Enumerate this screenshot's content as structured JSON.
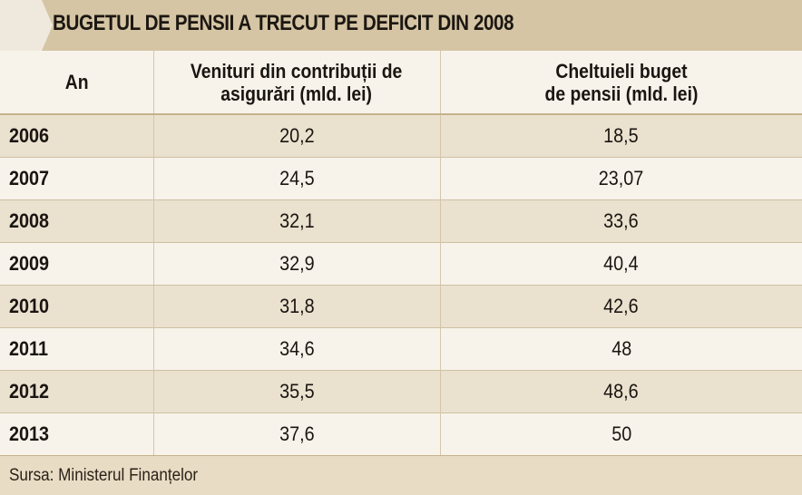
{
  "title": "BUGETUL DE PENSII A TRECUT PE DEFICIT DIN 2008",
  "columns": {
    "year": "An",
    "revenue_line1": "Venituri din contribuții de",
    "revenue_line2": "asigurări (mld. lei)",
    "expense_line1": "Cheltuieli buget",
    "expense_line2": "de pensii (mld. lei)"
  },
  "rows": [
    {
      "year": "2006",
      "revenue": "20,2",
      "expense": "18,5"
    },
    {
      "year": "2007",
      "revenue": "24,5",
      "expense": "23,07"
    },
    {
      "year": "2008",
      "revenue": "32,1",
      "expense": "33,6"
    },
    {
      "year": "2009",
      "revenue": "32,9",
      "expense": "40,4"
    },
    {
      "year": "2010",
      "revenue": "31,8",
      "expense": "42,6"
    },
    {
      "year": "2011",
      "revenue": "34,6",
      "expense": "48"
    },
    {
      "year": "2012",
      "revenue": "35,5",
      "expense": "48,6"
    },
    {
      "year": "2013",
      "revenue": "37,6",
      "expense": "50"
    }
  ],
  "source": "Sursa: Ministerul Finanțelor",
  "colors": {
    "title_band": "#d5c5a4",
    "title_arrow": "#efe9dd",
    "row_shade": "#eae1cf",
    "row_light": "#f7f3ea",
    "source_band": "#e8dcc4"
  },
  "chart_data": {
    "type": "table",
    "title": "BUGETUL DE PENSII A TRECUT PE DEFICIT DIN 2008",
    "columns": [
      "An",
      "Venituri din contribuții de asigurări (mld. lei)",
      "Cheltuieli buget de pensii (mld. lei)"
    ],
    "categories": [
      "2006",
      "2007",
      "2008",
      "2009",
      "2010",
      "2011",
      "2012",
      "2013"
    ],
    "series": [
      {
        "name": "Venituri din contribuții de asigurări (mld. lei)",
        "values": [
          20.2,
          24.5,
          32.1,
          32.9,
          31.8,
          34.6,
          35.5,
          37.6
        ]
      },
      {
        "name": "Cheltuieli buget de pensii (mld. lei)",
        "values": [
          18.5,
          23.07,
          33.6,
          40.4,
          42.6,
          48,
          48.6,
          50
        ]
      }
    ],
    "source": "Sursa: Ministerul Finanțelor"
  }
}
